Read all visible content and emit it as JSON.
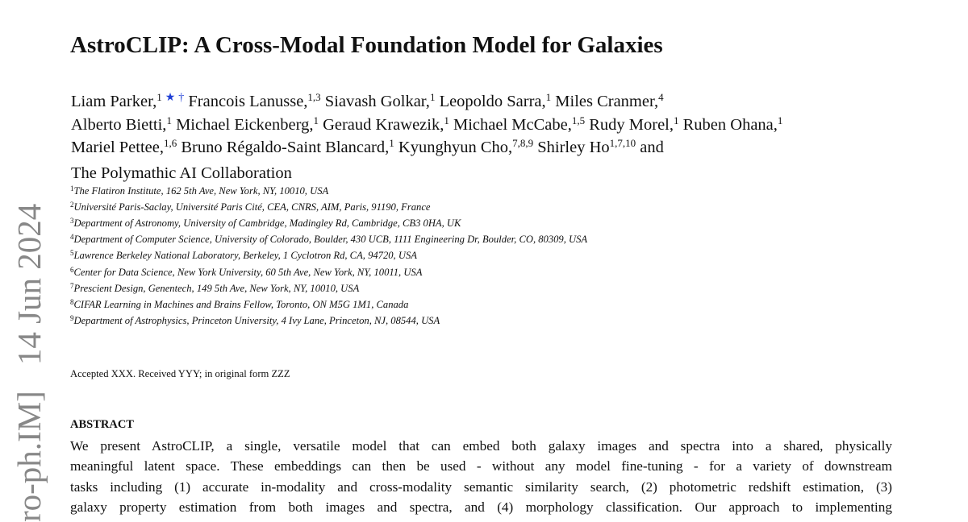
{
  "title": "AstroCLIP: A Cross-Modal Foundation Model for Galaxies",
  "authors": {
    "lines": [
      [
        {
          "name": "Liam Parker,",
          "sup": "1",
          "marks": [
            "★",
            "†"
          ]
        },
        {
          "name": "Francois Lanusse,",
          "sup": "1,3"
        },
        {
          "name": "Siavash Golkar,",
          "sup": "1"
        },
        {
          "name": "Leopoldo Sarra,",
          "sup": "1"
        },
        {
          "name": "Miles Cranmer,",
          "sup": "4"
        }
      ],
      [
        {
          "name": "Alberto Bietti,",
          "sup": "1"
        },
        {
          "name": "Michael Eickenberg,",
          "sup": "1"
        },
        {
          "name": "Geraud Krawezik,",
          "sup": "1"
        },
        {
          "name": "Michael McCabe,",
          "sup": "1,5"
        },
        {
          "name": "Rudy Morel,",
          "sup": "1"
        },
        {
          "name": "Ruben Ohana,",
          "sup": "1"
        }
      ],
      [
        {
          "name": "Mariel Pettee,",
          "sup": "1,6"
        },
        {
          "name": "Bruno Régaldo-Saint Blancard,",
          "sup": "1"
        },
        {
          "name": "Kyunghyun Cho,",
          "sup": "7,8,9"
        },
        {
          "name": "Shirley Ho",
          "sup": "1,7,10",
          "after": "and"
        }
      ],
      [
        {
          "name": "The Polymathic AI Collaboration"
        }
      ]
    ]
  },
  "affiliations": [
    {
      "sup": "1",
      "text": "The Flatiron Institute, 162 5th Ave, New York, NY, 10010, USA"
    },
    {
      "sup": "2",
      "text": "Université Paris-Saclay, Université Paris Cité, CEA, CNRS, AIM, Paris, 91190, France"
    },
    {
      "sup": "3",
      "text": "Department of Astronomy, University of Cambridge, Madingley Rd, Cambridge, CB3 0HA, UK"
    },
    {
      "sup": "4",
      "text": "Department of Computer Science, University of Colorado, Boulder, 430 UCB, 1111 Engineering Dr, Boulder, CO, 80309, USA"
    },
    {
      "sup": "5",
      "text": "Lawrence Berkeley National Laboratory, Berkeley, 1 Cyclotron Rd, CA, 94720, USA"
    },
    {
      "sup": "6",
      "text": "Center for Data Science, New York University, 60 5th Ave, New York, NY, 10011, USA"
    },
    {
      "sup": "7",
      "text": "Prescient Design, Genentech, 149 5th Ave, New York, NY, 10010, USA"
    },
    {
      "sup": "8",
      "text": "CIFAR Learning in Machines and Brains Fellow, Toronto, ON M5G 1M1, Canada"
    },
    {
      "sup": "9",
      "text": "Department of Astrophysics, Princeton University, 4 Ivy Lane, Princeton, NJ, 08544, USA"
    }
  ],
  "accepted": "Accepted XXX. Received YYY; in original form ZZZ",
  "abstract": {
    "heading": "ABSTRACT",
    "lines": [
      "We present AstroCLIP, a single, versatile model that can embed both galaxy images and spectra into a shared, physically",
      "meaningful latent space. These embeddings can then be used - without any model fine-tuning - for a variety of downstream",
      "tasks including (1) accurate in-modality and cross-modality semantic similarity search, (2) photometric redshift estimation, (3)",
      "galaxy property estimation from both images and spectra, and (4) morphology classification. Our approach to implementing"
    ]
  },
  "stamp": [
    "ro-ph.IM]",
    "14 Jun 2024"
  ]
}
